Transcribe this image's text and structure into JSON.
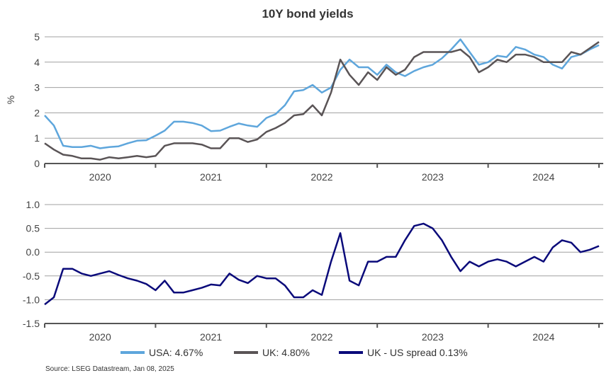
{
  "chart_data": [
    {
      "type": "line",
      "title": "10Y bond yields",
      "ylabel": "%",
      "ylim": [
        0,
        5
      ],
      "yticks": [
        "0",
        "1",
        "2",
        "3",
        "4",
        "5"
      ],
      "xlim": [
        "2020-01",
        "2025-01"
      ],
      "xtick_labels": [
        "2020",
        "2021",
        "2022",
        "2023",
        "2024"
      ],
      "grid": true,
      "x": [
        "2020-01",
        "2020-02",
        "2020-03",
        "2020-04",
        "2020-05",
        "2020-06",
        "2020-07",
        "2020-08",
        "2020-09",
        "2020-10",
        "2020-11",
        "2020-12",
        "2021-01",
        "2021-02",
        "2021-03",
        "2021-04",
        "2021-05",
        "2021-06",
        "2021-07",
        "2021-08",
        "2021-09",
        "2021-10",
        "2021-11",
        "2021-12",
        "2022-01",
        "2022-02",
        "2022-03",
        "2022-04",
        "2022-05",
        "2022-06",
        "2022-07",
        "2022-08",
        "2022-09",
        "2022-10",
        "2022-11",
        "2022-12",
        "2023-01",
        "2023-02",
        "2023-03",
        "2023-04",
        "2023-05",
        "2023-06",
        "2023-07",
        "2023-08",
        "2023-09",
        "2023-10",
        "2023-11",
        "2023-12",
        "2024-01",
        "2024-02",
        "2024-03",
        "2024-04",
        "2024-05",
        "2024-06",
        "2024-07",
        "2024-08",
        "2024-09",
        "2024-10",
        "2024-11",
        "2024-12",
        "2025-01"
      ],
      "series": [
        {
          "name": "USA",
          "color": "#5ea6dc",
          "values": [
            1.9,
            1.5,
            0.7,
            0.65,
            0.65,
            0.7,
            0.6,
            0.65,
            0.68,
            0.8,
            0.9,
            0.92,
            1.1,
            1.3,
            1.65,
            1.65,
            1.6,
            1.5,
            1.28,
            1.3,
            1.45,
            1.58,
            1.5,
            1.45,
            1.8,
            1.95,
            2.3,
            2.85,
            2.9,
            3.1,
            2.8,
            3.0,
            3.7,
            4.1,
            3.8,
            3.8,
            3.5,
            3.9,
            3.6,
            3.45,
            3.65,
            3.8,
            3.9,
            4.15,
            4.5,
            4.9,
            4.4,
            3.9,
            4.0,
            4.25,
            4.2,
            4.6,
            4.5,
            4.3,
            4.2,
            3.9,
            3.75,
            4.2,
            4.3,
            4.5,
            4.67
          ]
        },
        {
          "name": "UK",
          "color": "#5a5456",
          "values": [
            0.8,
            0.55,
            0.35,
            0.3,
            0.2,
            0.2,
            0.15,
            0.25,
            0.2,
            0.25,
            0.3,
            0.25,
            0.3,
            0.7,
            0.8,
            0.8,
            0.8,
            0.75,
            0.6,
            0.6,
            1.0,
            1.0,
            0.85,
            0.95,
            1.25,
            1.4,
            1.6,
            1.9,
            1.95,
            2.3,
            1.9,
            2.8,
            4.1,
            3.5,
            3.1,
            3.6,
            3.3,
            3.8,
            3.5,
            3.7,
            4.2,
            4.4,
            4.4,
            4.4,
            4.4,
            4.5,
            4.2,
            3.6,
            3.8,
            4.1,
            4.0,
            4.3,
            4.3,
            4.2,
            4.0,
            4.0,
            4.0,
            4.4,
            4.3,
            4.55,
            4.8
          ]
        }
      ]
    },
    {
      "type": "line",
      "title": "",
      "ylim": [
        -1.5,
        1.0
      ],
      "yticks": [
        "-1.5",
        "-1.0",
        "-0.5",
        "0.0",
        "0.5",
        "1.0"
      ],
      "xlim": [
        "2020-01",
        "2025-01"
      ],
      "xtick_labels": [
        "2020",
        "2021",
        "2022",
        "2023",
        "2024"
      ],
      "grid": true,
      "series": [
        {
          "name": "UK - US spread",
          "color": "#0a0a7a",
          "values": [
            -1.1,
            -0.95,
            -0.35,
            -0.35,
            -0.45,
            -0.5,
            -0.45,
            -0.4,
            -0.48,
            -0.55,
            -0.6,
            -0.67,
            -0.8,
            -0.6,
            -0.85,
            -0.85,
            -0.8,
            -0.75,
            -0.68,
            -0.7,
            -0.45,
            -0.58,
            -0.65,
            -0.5,
            -0.55,
            -0.55,
            -0.7,
            -0.95,
            -0.95,
            -0.8,
            -0.9,
            -0.2,
            0.4,
            -0.6,
            -0.7,
            -0.2,
            -0.2,
            -0.1,
            -0.1,
            0.25,
            0.55,
            0.6,
            0.5,
            0.25,
            -0.1,
            -0.4,
            -0.2,
            -0.3,
            -0.2,
            -0.15,
            -0.2,
            -0.3,
            -0.2,
            -0.1,
            -0.2,
            0.1,
            0.25,
            0.2,
            0.0,
            0.05,
            0.13
          ]
        }
      ]
    }
  ],
  "legend": {
    "placement": "bottom",
    "items": [
      {
        "label": "USA: 4.67%",
        "color": "#5ea6dc"
      },
      {
        "label": "UK: 4.80%",
        "color": "#5a5456"
      },
      {
        "label": "UK - US spread 0.13%",
        "color": "#0a0a7a"
      }
    ]
  },
  "source": "Source: LSEG Datastream, Jan 08, 2025"
}
